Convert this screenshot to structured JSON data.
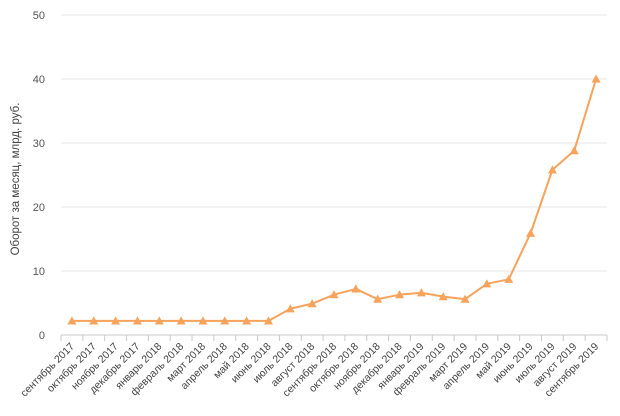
{
  "chart_data": {
    "type": "line",
    "title": "",
    "xlabel": "",
    "ylabel": "Оборот за месяц, млрд. руб.",
    "ylim": [
      0,
      50
    ],
    "yticks": [
      0,
      10,
      20,
      30,
      40,
      50
    ],
    "grid": true,
    "legend": "none",
    "categories": [
      "сентябрь 2017",
      "октябрь 2017",
      "ноябрь 2017",
      "декабрь 2017",
      "январь 2018",
      "февраль 2018",
      "март 2018",
      "апрель 2018",
      "май 2018",
      "июнь 2018",
      "июль 2018",
      "август 2018",
      "сентябрь 2018",
      "октябрь 2018",
      "ноябрь 2018",
      "декабрь 2018",
      "январь 2019",
      "февраль 2019",
      "март 2019",
      "апрель 2019",
      "май 2019",
      "июнь 2019",
      "июль 2019",
      "август 2019",
      "сентябрь 2019"
    ],
    "series": [
      {
        "color": "#f7a35c",
        "marker": "triangle",
        "values": [
          2.2,
          2.2,
          2.2,
          2.2,
          2.2,
          2.2,
          2.2,
          2.2,
          2.2,
          2.2,
          4.1,
          4.9,
          6.3,
          7.2,
          5.6,
          6.3,
          6.6,
          6.0,
          5.6,
          8.0,
          8.7,
          15.9,
          25.8,
          28.8,
          40.0
        ]
      }
    ]
  }
}
